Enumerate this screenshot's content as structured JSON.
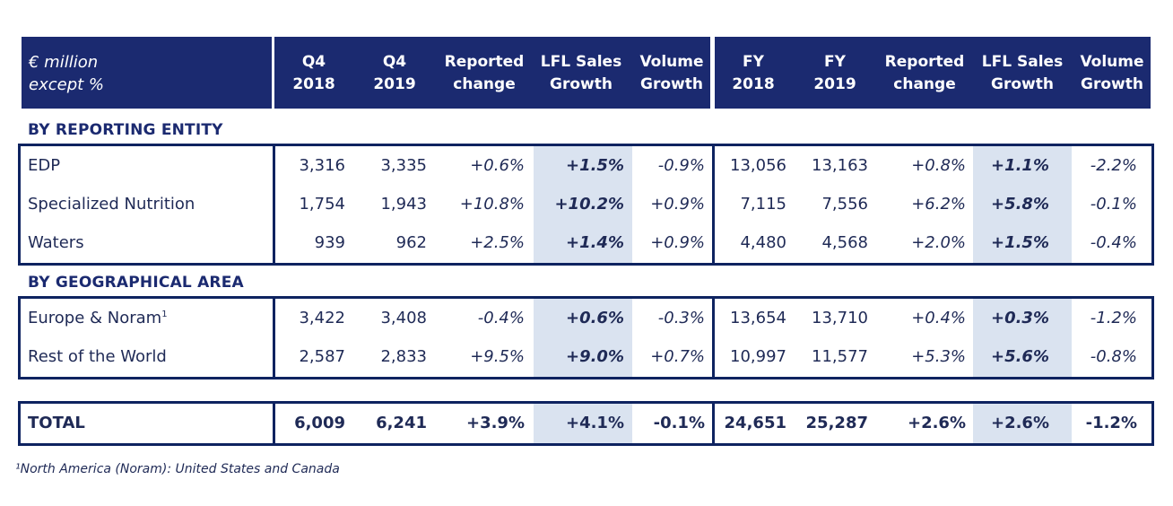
{
  "header": {
    "label_line1": "€ million",
    "label_line2": "except %",
    "columns": [
      "Q4\n2018",
      "Q4\n2019",
      "Reported\nchange",
      "LFL Sales\nGrowth",
      "Volume\nGrowth",
      "FY\n2018",
      "FY\n2019",
      "Reported\nchange",
      "LFL Sales\nGrowth",
      "Volume\nGrowth"
    ]
  },
  "sections": {
    "entity": {
      "title": "BY REPORTING ENTITY",
      "rows": [
        {
          "label": "EDP",
          "sup": "",
          "values": [
            "3,316",
            "3,335",
            "+0.6%",
            "+1.5%",
            "-0.9%",
            "13,056",
            "13,163",
            "+0.8%",
            "+1.1%",
            "-2.2%"
          ]
        },
        {
          "label": "Specialized Nutrition",
          "sup": "",
          "values": [
            "1,754",
            "1,943",
            "+10.8%",
            "+10.2%",
            "+0.9%",
            "7,115",
            "7,556",
            "+6.2%",
            "+5.8%",
            "-0.1%"
          ]
        },
        {
          "label": "Waters",
          "sup": "",
          "values": [
            "939",
            "962",
            "+2.5%",
            "+1.4%",
            "+0.9%",
            "4,480",
            "4,568",
            "+2.0%",
            "+1.5%",
            "-0.4%"
          ]
        }
      ]
    },
    "geo": {
      "title": "BY GEOGRAPHICAL AREA",
      "rows": [
        {
          "label": "Europe & Noram",
          "sup": "1",
          "values": [
            "3,422",
            "3,408",
            "-0.4%",
            "+0.6%",
            "-0.3%",
            "13,654",
            "13,710",
            "+0.4%",
            "+0.3%",
            "-1.2%"
          ]
        },
        {
          "label": "Rest of the World",
          "sup": "",
          "values": [
            "2,587",
            "2,833",
            "+9.5%",
            "+9.0%",
            "+0.7%",
            "10,997",
            "11,577",
            "+5.3%",
            "+5.6%",
            "-0.8%"
          ]
        }
      ]
    },
    "total": {
      "rows": [
        {
          "label": "TOTAL",
          "sup": "",
          "values": [
            "6,009",
            "6,241",
            "+3.9%",
            "+4.1%",
            "-0.1%",
            "24,651",
            "25,287",
            "+2.6%",
            "+2.6%",
            "-1.2%"
          ]
        }
      ]
    }
  },
  "footnote": "¹North America (Noram): United States and Canada",
  "colors": {
    "header_bg": "#1b2a70",
    "border": "#0e2360",
    "highlight": "#dae3f0",
    "text": "#1f2a56"
  }
}
